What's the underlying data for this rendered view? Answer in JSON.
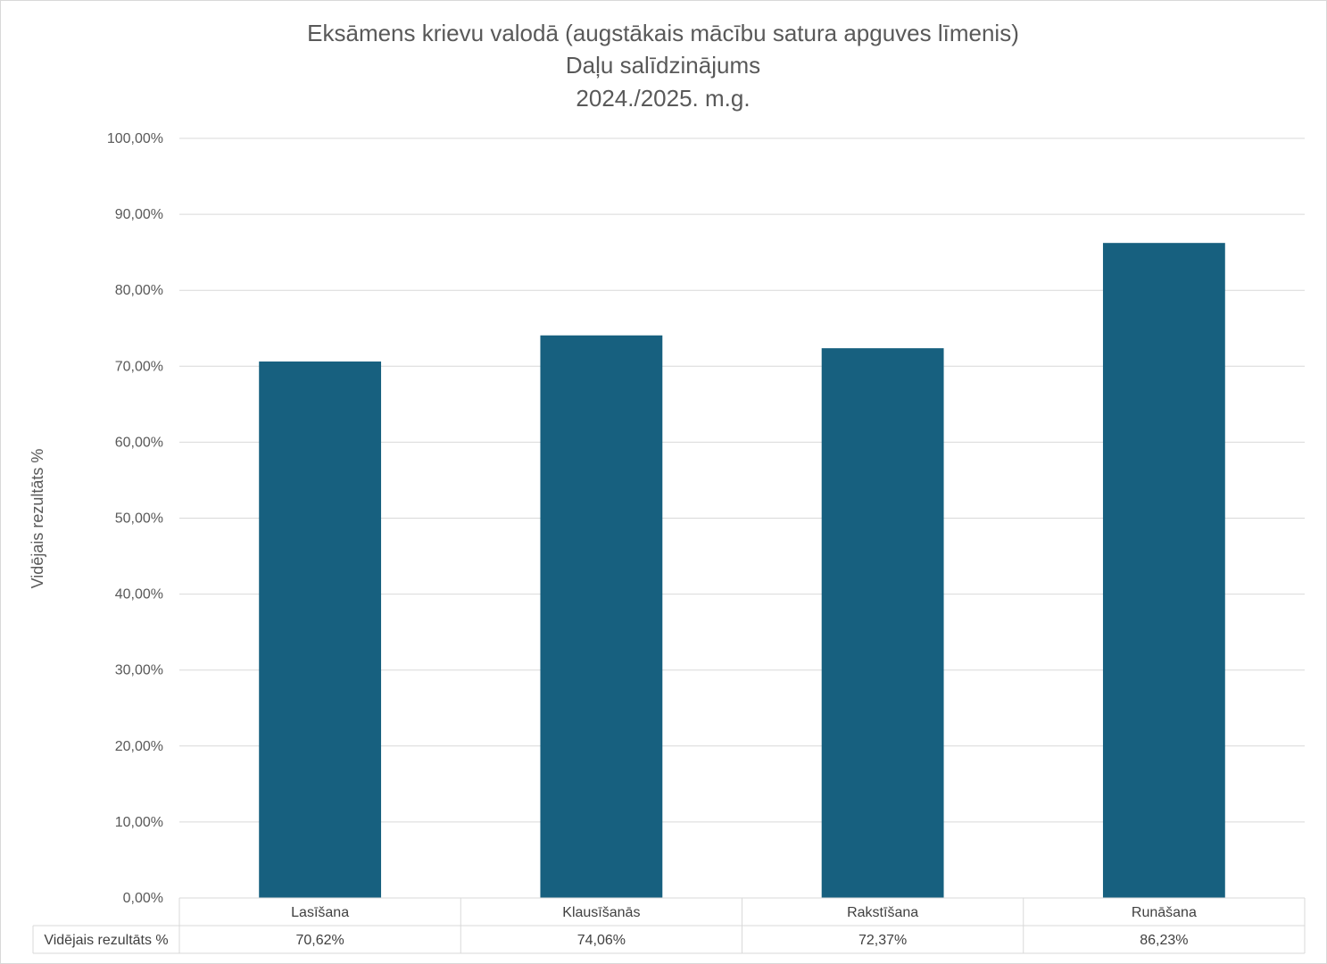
{
  "chart_data": {
    "type": "bar",
    "title": [
      "Eksāmens krievu valodā (augstākais mācību satura apguves līmenis)",
      "Daļu salīdzinājums",
      "2024./2025. m.g."
    ],
    "ylabel": "Vidējais rezultāts %",
    "xlabel": "",
    "ylim": [
      0,
      100
    ],
    "ytick_step": 10,
    "y_tick_labels": [
      "0,00%",
      "10,00%",
      "20,00%",
      "30,00%",
      "40,00%",
      "50,00%",
      "60,00%",
      "70,00%",
      "80,00%",
      "90,00%",
      "100,00%"
    ],
    "grid": true,
    "legend": "data table below the axis",
    "bar_color": "#17607f",
    "categories": [
      "Lasīšana",
      "Klausīšanās",
      "Rakstīšana",
      "Runāšana"
    ],
    "series": [
      {
        "name": "Vidējais rezultāts %",
        "values": [
          70.62,
          74.06,
          72.37,
          86.23
        ],
        "value_labels": [
          "70,62%",
          "74,06%",
          "72,37%",
          "86,23%"
        ]
      }
    ]
  }
}
